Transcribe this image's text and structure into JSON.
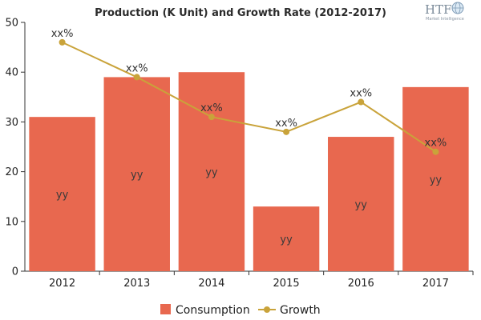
{
  "chart_data": {
    "type": "bar",
    "title": "Production (K Unit) and Growth Rate (2012-2017)",
    "xlabel": "",
    "ylabel": "",
    "categories": [
      "2012",
      "2013",
      "2014",
      "2015",
      "2016",
      "2017"
    ],
    "ylim": [
      0,
      50
    ],
    "yticks": [
      0,
      10,
      20,
      30,
      40,
      50
    ],
    "grid": false,
    "legend": "bottom",
    "series": [
      {
        "name": "Consumption",
        "type": "bar",
        "color": "#e8684f",
        "values": [
          31,
          39,
          40,
          13,
          27,
          37
        ],
        "labels": [
          "yy",
          "yy",
          "yy",
          "yy",
          "yy",
          "yy"
        ]
      },
      {
        "name": "Growth",
        "type": "line",
        "color": "#c9a33a",
        "values": [
          46,
          39,
          31,
          28,
          34,
          24
        ],
        "labels": [
          "xx%",
          "xx%",
          "xx%",
          "xx%",
          "xx%",
          "xx%"
        ]
      }
    ]
  },
  "logo": {
    "text": "HTF",
    "subtext": "Market Intelligence",
    "icon": "globe-icon"
  }
}
